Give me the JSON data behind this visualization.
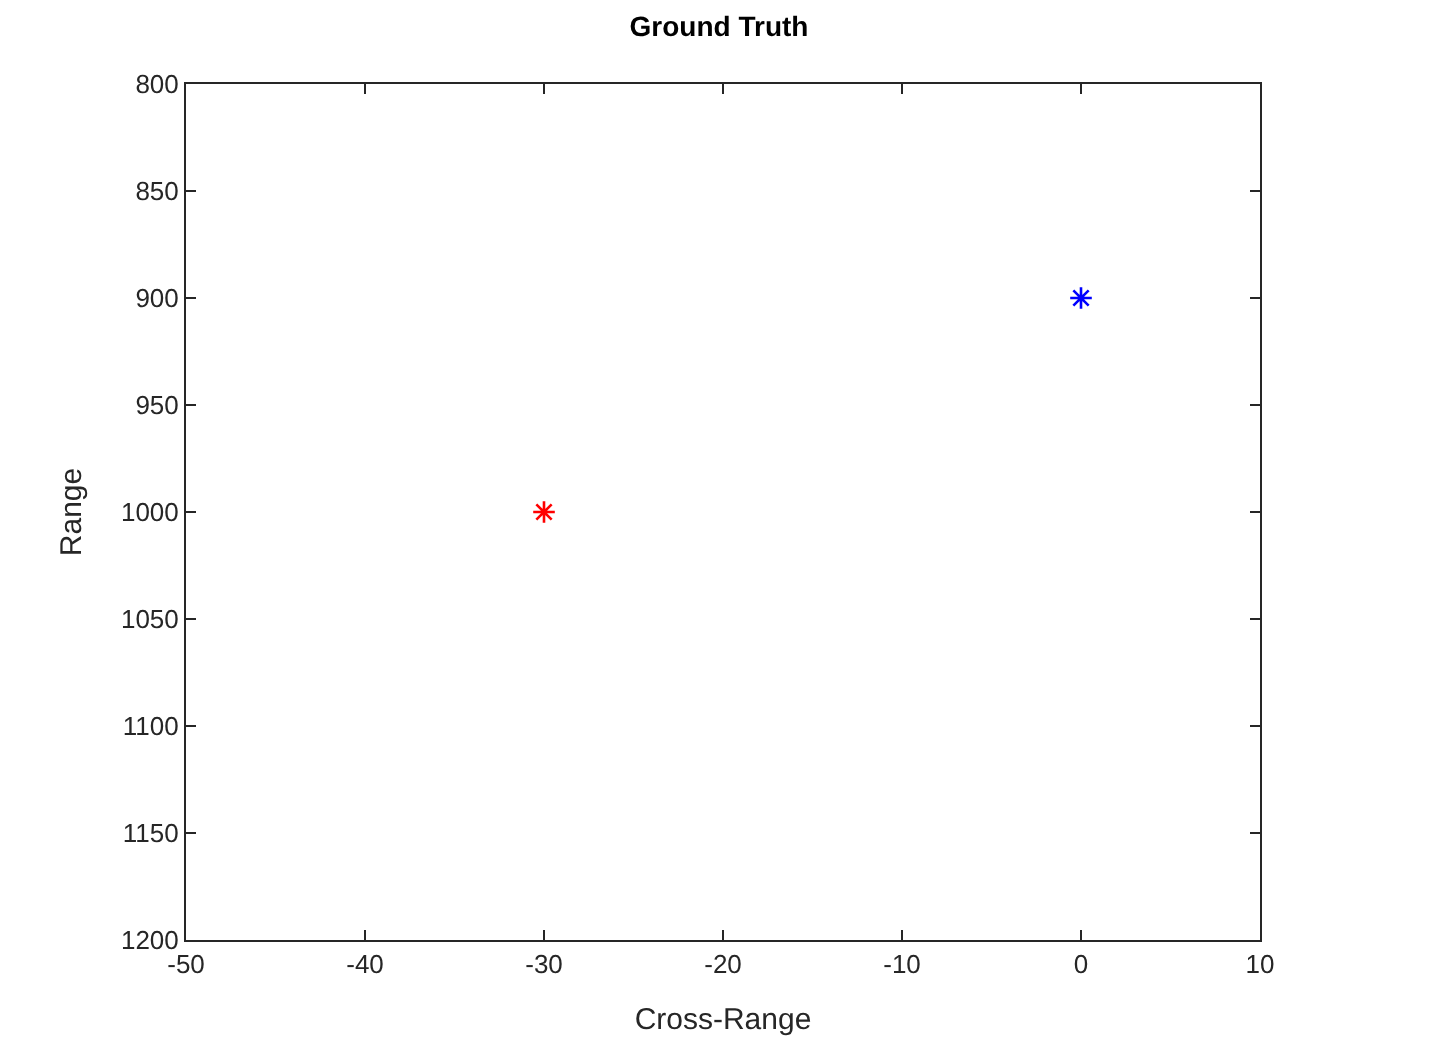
{
  "chart_data": {
    "type": "scatter",
    "title": "Ground Truth",
    "xlabel": "Cross-Range",
    "ylabel": "Range",
    "series": [
      {
        "color": "#ff0000",
        "x": [
          -30
        ],
        "values": [
          1000
        ]
      },
      {
        "color": "#0000ff",
        "x": [
          0
        ],
        "values": [
          900
        ]
      }
    ],
    "xlim": [
      -50,
      10
    ],
    "xticks": [
      -50,
      -40,
      -30,
      -20,
      -10,
      0,
      10
    ],
    "ylim": [
      1200,
      800
    ],
    "yticks": [
      800,
      850,
      900,
      950,
      1000,
      1050,
      1100,
      1150,
      1200
    ],
    "marker": "cross",
    "grid": false
  }
}
